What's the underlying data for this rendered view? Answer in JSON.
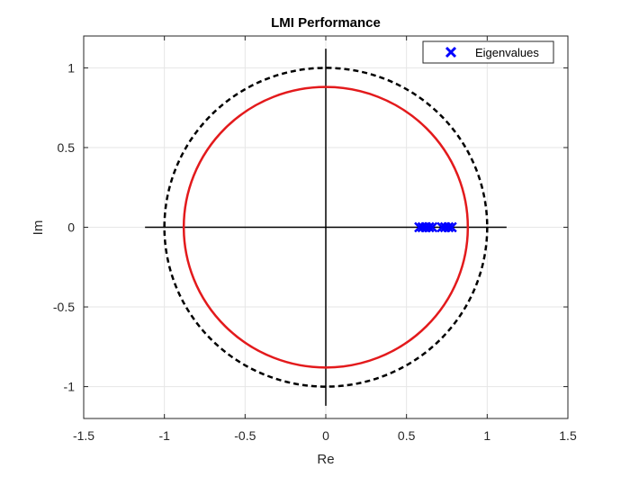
{
  "chart_data": {
    "type": "scatter",
    "title": "LMI Performance",
    "xlabel": "Re",
    "ylabel": "Im",
    "xlim": [
      -1.5,
      1.5
    ],
    "ylim": [
      -1.2,
      1.2
    ],
    "xticks": [
      -1.5,
      -1,
      -0.5,
      0,
      0.5,
      1,
      1.5
    ],
    "xtick_labels": [
      "-1.5",
      "-1",
      "-0.5",
      "0",
      "0.5",
      "1",
      "1.5"
    ],
    "yticks": [
      -1,
      -0.5,
      0,
      0.5,
      1
    ],
    "ytick_labels": [
      "-1",
      "-0.5",
      "0",
      "0.5",
      "1"
    ],
    "grid": true,
    "legend": {
      "position": "top-right",
      "entries": [
        "Eigenvalues"
      ]
    },
    "series": [
      {
        "name": "Eigenvalues",
        "marker": "x",
        "color": "#0000ff",
        "x": [
          0.58,
          0.6,
          0.62,
          0.64,
          0.66,
          0.72,
          0.74,
          0.76,
          0.78
        ],
        "y": [
          0,
          0,
          0,
          0,
          0,
          0,
          0,
          0,
          0
        ]
      }
    ],
    "circles": [
      {
        "role": "unit circle",
        "radius": 1.0,
        "style": "dashed",
        "color": "#000000"
      },
      {
        "role": "performance region",
        "radius": 0.88,
        "style": "solid",
        "color": "#e31a1c"
      }
    ],
    "axis_lines": {
      "x": [
        -1.12,
        1.12
      ],
      "y": [
        -1.12,
        1.12
      ],
      "color": "#000000"
    }
  }
}
